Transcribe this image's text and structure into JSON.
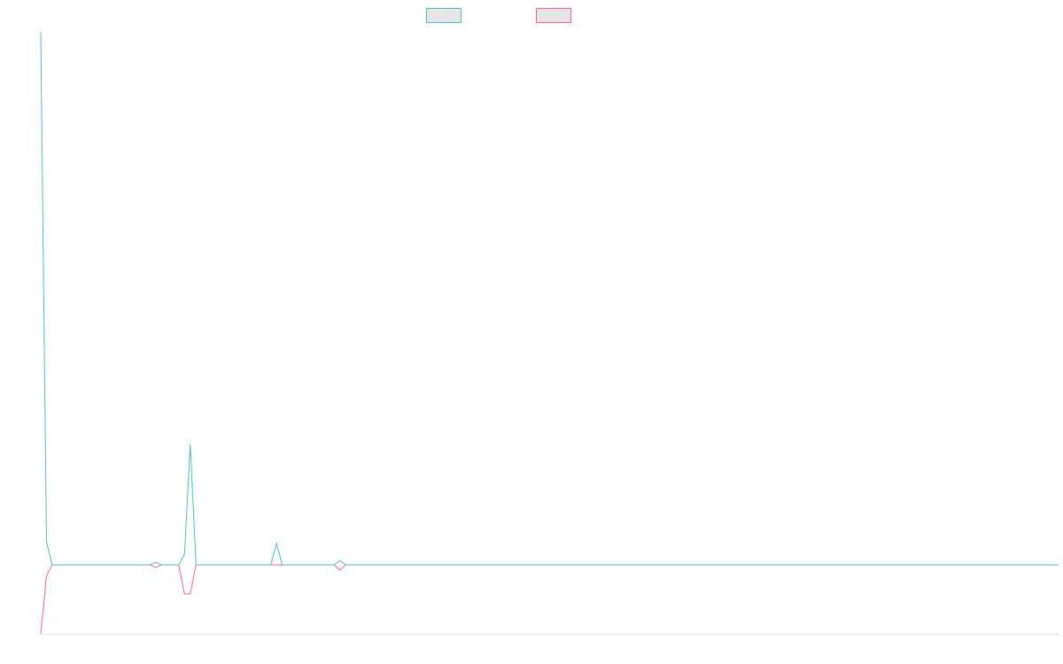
{
  "chart_data": {
    "type": "line",
    "categories": [
      null,
      null,
      null,
      null,
      null,
      null,
      null,
      null,
      null,
      null,
      null,
      null,
      null,
      null,
      null,
      null,
      null,
      null,
      null,
      null,
      null,
      null,
      null,
      null,
      null,
      null,
      null,
      null,
      null,
      null,
      null,
      null,
      null,
      null,
      null,
      null,
      null,
      null,
      null,
      null,
      null,
      null,
      null,
      null,
      null,
      null,
      null,
      null,
      null,
      null,
      null,
      null,
      null,
      null,
      null,
      null,
      null,
      null,
      null,
      null,
      null,
      null,
      null,
      null,
      null,
      null,
      null,
      null,
      null,
      null,
      null,
      null,
      null,
      null,
      null,
      null,
      null,
      null,
      null,
      null,
      null,
      null,
      null,
      null,
      null,
      null,
      null,
      null,
      null,
      null,
      null,
      null,
      null,
      null,
      null,
      null,
      null,
      null,
      null,
      null,
      null,
      null,
      null,
      null,
      null,
      null,
      null,
      null,
      null,
      null,
      null,
      null,
      null,
      null,
      null,
      null,
      null,
      null,
      null,
      null,
      null,
      null,
      null,
      null,
      null,
      null,
      null,
      null,
      null,
      null,
      null,
      null,
      null,
      null,
      null,
      null,
      null,
      null,
      null,
      null,
      null,
      null,
      null,
      null,
      null,
      null,
      null,
      null,
      null,
      null,
      null,
      null,
      null,
      null,
      null,
      null,
      null,
      null,
      null,
      null,
      null,
      null,
      null,
      null,
      null,
      null,
      null,
      null,
      null,
      null,
      null,
      null,
      null,
      null,
      null,
      null,
      null,
      null
    ],
    "series": [
      {
        "color": "#4bc0c0",
        "values": [
          602,
          26,
          0,
          0,
          0,
          0,
          0,
          0,
          0,
          0,
          0,
          0,
          0,
          0,
          0,
          0,
          0,
          0,
          0,
          0,
          3,
          0,
          0,
          0,
          0,
          12,
          136,
          0,
          0,
          0,
          0,
          0,
          0,
          0,
          0,
          0,
          0,
          0,
          0,
          0,
          0,
          24,
          0,
          0,
          0,
          0,
          0,
          0,
          0,
          0,
          0,
          0,
          5,
          0,
          0,
          0,
          0,
          0,
          0,
          0,
          0,
          0,
          0,
          0,
          0,
          0,
          0,
          0,
          0,
          0,
          0,
          0,
          0,
          0,
          0,
          0,
          0,
          0,
          0,
          0,
          0,
          0,
          0,
          0,
          0,
          0,
          0,
          0,
          0,
          0,
          0,
          0,
          0,
          0,
          0,
          0,
          0,
          0,
          0,
          0,
          0,
          0,
          0,
          0,
          0,
          0,
          0,
          0,
          0,
          0,
          0,
          0,
          0,
          0,
          0,
          0,
          0,
          0,
          0,
          0,
          0,
          0,
          0,
          0,
          0,
          0,
          0,
          0,
          0,
          0,
          0,
          0,
          0,
          0,
          0,
          0,
          0,
          0,
          0,
          0,
          0,
          0,
          0,
          0,
          0,
          0,
          0,
          0,
          0,
          0,
          0,
          0,
          0,
          0,
          0,
          0,
          0,
          0,
          0,
          0,
          0,
          0,
          0,
          0,
          0,
          0,
          0,
          0,
          0,
          0,
          0,
          0,
          0,
          0,
          0,
          0,
          0,
          0
        ]
      },
      {
        "color": "#ff6384",
        "values": [
          -78,
          -12,
          0,
          0,
          0,
          0,
          0,
          0,
          0,
          0,
          0,
          0,
          0,
          0,
          0,
          0,
          0,
          0,
          0,
          0,
          -3,
          0,
          0,
          0,
          0,
          -33,
          -33,
          0,
          0,
          0,
          0,
          0,
          0,
          0,
          0,
          0,
          0,
          0,
          0,
          0,
          0,
          0,
          0,
          0,
          0,
          0,
          0,
          0,
          0,
          0,
          0,
          0,
          -6,
          0,
          0,
          0,
          0,
          0,
          0,
          0,
          0,
          0,
          0,
          0,
          0,
          0,
          0,
          0,
          0,
          0,
          0,
          0,
          0,
          0,
          0,
          0,
          0,
          0,
          0,
          0,
          0,
          0,
          0,
          0,
          0,
          0,
          0,
          0,
          0,
          0,
          0,
          0,
          0,
          0,
          0,
          0,
          0,
          0,
          0,
          0,
          0,
          0,
          0,
          0,
          0,
          0,
          0,
          0,
          0,
          0,
          0,
          0,
          0,
          0,
          0,
          0,
          0,
          0,
          0,
          0,
          0,
          0,
          0,
          0,
          0,
          0,
          0,
          0,
          0,
          0,
          0,
          0,
          0,
          0,
          0,
          0,
          0,
          0,
          0,
          0,
          0,
          0,
          0,
          0,
          0,
          0,
          0,
          0,
          0,
          0,
          0,
          0,
          0,
          0,
          0,
          0,
          0,
          0,
          0,
          0,
          0,
          0,
          0,
          0,
          0,
          0,
          0,
          0,
          0,
          0,
          0,
          0,
          0,
          0,
          0,
          0,
          0,
          0
        ]
      }
    ],
    "ylim": [
      -78,
      602
    ]
  }
}
